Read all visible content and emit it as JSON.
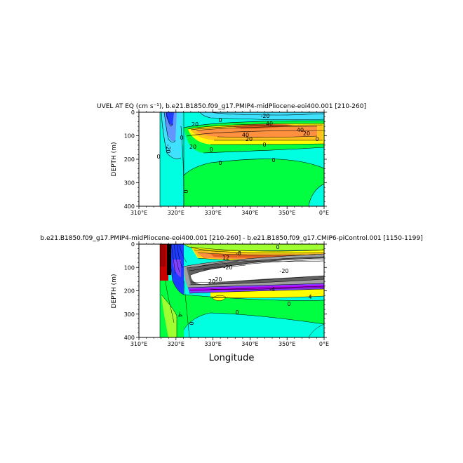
{
  "chart_data": [
    {
      "type": "contour",
      "title": "UVEL AT EQ (cm s⁻¹), b.e21.B1850.f09_g17.PMIP4-midPliocene-eoi400.001 [210-260]",
      "ylabel": "DEPTH (m)",
      "xlabel": "",
      "xlim": [
        "310°E",
        "0°E"
      ],
      "ylim": [
        0,
        400
      ],
      "y_reversed": true,
      "xticks": [
        "310°E",
        "320°E",
        "330°E",
        "340°E",
        "350°E",
        "0°E"
      ],
      "yticks": [
        0,
        100,
        200,
        300,
        400
      ],
      "land_boundary": "316°E",
      "contour_labels": [
        {
          "text": "-20",
          "lon": 346,
          "depth": 18
        },
        {
          "text": "20",
          "lon": 328,
          "depth": 45
        },
        {
          "text": "0",
          "lon": 337,
          "depth": 38
        },
        {
          "text": "40",
          "lon": 343,
          "depth": 95
        },
        {
          "text": "40",
          "lon": 347,
          "depth": 48
        },
        {
          "text": "40",
          "lon": 351,
          "depth": 75
        },
        {
          "text": "20",
          "lon": 354,
          "depth": 92
        },
        {
          "text": "20",
          "lon": 338,
          "depth": 112
        },
        {
          "text": "0",
          "lon": 358,
          "depth": 110
        },
        {
          "text": "20",
          "lon": 325,
          "depth": 148
        },
        {
          "text": "0",
          "lon": 321,
          "depth": 112
        },
        {
          "text": "0",
          "lon": 333,
          "depth": 162
        },
        {
          "text": "0",
          "lon": 345,
          "depth": 138
        },
        {
          "text": "0",
          "lon": 331,
          "depth": 220
        },
        {
          "text": "0",
          "lon": 350,
          "depth": 205
        },
        {
          "text": "-20",
          "lon": 318,
          "depth": 150
        },
        {
          "text": "0",
          "lon": 316,
          "depth": 190
        },
        {
          "text": "0",
          "lon": 323,
          "depth": 335
        }
      ]
    },
    {
      "type": "contour",
      "title": "b.e21.B1850.f09_g17.PMIP4-midPliocene-eoi400.001 [210-260] - b.e21.B1850.f09_g17.CMIP6-piControl.001 [1150-1199]",
      "ylabel": "DEPTH (m)",
      "xlabel": "Longitude",
      "xlim": [
        "310°E",
        "0°E"
      ],
      "ylim": [
        0,
        400
      ],
      "y_reversed": true,
      "xticks": [
        "310°E",
        "320°E",
        "330°E",
        "340°E",
        "350°E",
        "0°E"
      ],
      "yticks": [
        0,
        100,
        200,
        300,
        400
      ],
      "land_boundary": "316°E",
      "contour_labels": [
        {
          "text": "0",
          "lon": 346,
          "depth": 15
        },
        {
          "text": "12",
          "lon": 337,
          "depth": 55
        },
        {
          "text": "-8",
          "lon": 339,
          "depth": 40
        },
        {
          "text": "-20",
          "lon": 328,
          "depth": 105
        },
        {
          "text": "-20",
          "lon": 353,
          "depth": 108
        },
        {
          "text": "20",
          "lon": 329,
          "depth": 160
        },
        {
          "text": "4",
          "lon": 354,
          "depth": 228
        },
        {
          "text": "-4",
          "lon": 345,
          "depth": 198
        },
        {
          "text": "-20",
          "lon": 330,
          "depth": 138
        },
        {
          "text": "-4",
          "lon": 319,
          "depth": 300
        },
        {
          "text": "0",
          "lon": 334,
          "depth": 292
        },
        {
          "text": "0",
          "lon": 352,
          "depth": 258
        },
        {
          "text": "0",
          "lon": 322,
          "depth": 345
        }
      ]
    }
  ],
  "colors": {
    "deep_blue": "#1e3cff",
    "blue": "#6495ff",
    "light_blue": "#40e0ff",
    "cyan": "#00ffe0",
    "green": "#00ff40",
    "light_green": "#a0ff30",
    "yellow": "#ffff00",
    "gold": "#ffc020",
    "orange": "#ff9040",
    "dark_orange": "#e06020",
    "red": "#c80000",
    "dark_red": "#a00000",
    "purple": "#8040ff",
    "magenta": "#c000ff",
    "gray": "#a0a0a0",
    "white": "#ffffff",
    "black": "#000000"
  }
}
